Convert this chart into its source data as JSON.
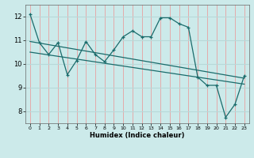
{
  "title": "",
  "xlabel": "Humidex (Indice chaleur)",
  "ylabel": "",
  "bg_color": "#cceaea",
  "line_color": "#1a6b6b",
  "grid_color_v": "#e8a0a0",
  "grid_color_h": "#b8d8d8",
  "xlim": [
    -0.5,
    23.5
  ],
  "ylim": [
    7.5,
    12.5
  ],
  "yticks": [
    8,
    9,
    10,
    11,
    12
  ],
  "xticks": [
    0,
    1,
    2,
    3,
    4,
    5,
    6,
    7,
    8,
    9,
    10,
    11,
    12,
    13,
    14,
    15,
    16,
    17,
    18,
    19,
    20,
    21,
    22,
    23
  ],
  "line1_x": [
    0,
    1,
    2,
    3,
    4,
    5,
    6,
    7,
    8,
    9,
    10,
    11,
    12,
    13,
    14,
    15,
    16,
    17,
    18,
    19,
    20,
    21,
    22,
    23
  ],
  "line1_y": [
    12.1,
    10.9,
    10.4,
    10.9,
    9.55,
    10.15,
    10.95,
    10.4,
    10.1,
    10.6,
    11.15,
    11.4,
    11.15,
    11.15,
    11.95,
    11.95,
    11.7,
    11.55,
    9.45,
    9.1,
    9.1,
    7.75,
    8.3,
    9.5
  ],
  "line3_x": [
    0,
    23
  ],
  "line3_y": [
    10.95,
    9.4
  ],
  "line4_x": [
    0,
    23
  ],
  "line4_y": [
    10.5,
    9.15
  ]
}
